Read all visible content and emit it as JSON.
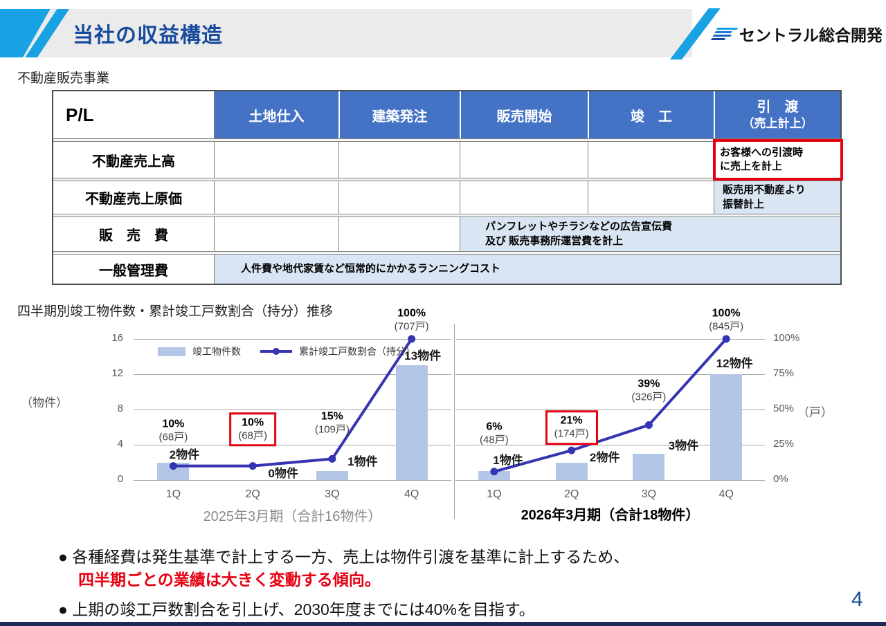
{
  "slide": {
    "header_title": "当社の収益構造",
    "logo_text": "セントラル総合開発",
    "business_label": "不動産販売事業",
    "chart_section_title": "四半期別竣工物件数・累計竣工戸数割合（持分）推移",
    "page_number": "4",
    "colors": {
      "accent_blue": "#164a9c",
      "cyan_stripe": "#18a2e3",
      "table_header_blue": "#4472c4",
      "note_bg_blue": "#d9e5f2",
      "highlight_red": "#e60012",
      "bar_fill": "#b4c6e7",
      "line_color": "#3534b2"
    }
  },
  "pl_table": {
    "corner": "P/L",
    "phase_columns": [
      "土地仕入",
      "建築発注",
      "販売開始",
      "竣　工"
    ],
    "last_phase_line1": "引　渡",
    "last_phase_line2": "（売上計上）",
    "rows": [
      {
        "label": "不動産売上高",
        "note": "お客様への引渡時\nに売上を計上"
      },
      {
        "label": "不動産売上原価",
        "note": "販売用不動産より\n振替計上"
      },
      {
        "label": "販　売　費",
        "note": "パンフレットやチラシなどの広告宣伝費\n及び 販売事務所運営費を計上"
      },
      {
        "label": "一般管理費",
        "note": "人件費や地代家賃など恒常的にかかるランニングコスト"
      }
    ]
  },
  "chart_data": {
    "type": "combo-bar-line",
    "legend": [
      "竣工物件数",
      "累計竣工戸数割合（持分）"
    ],
    "left_axis": {
      "unit": "（物件）",
      "ticks": [
        "16",
        "12",
        "8",
        "4",
        "0"
      ],
      "max": 16
    },
    "right_axis": {
      "unit": "（戸）",
      "ticks": [
        "100%",
        "75%",
        "50%",
        "25%",
        "0%"
      ],
      "max_pct": 100
    },
    "panels": [
      {
        "title": "2025年3月期（合計16物件）",
        "categories": [
          "1Q",
          "2Q",
          "3Q",
          "4Q"
        ],
        "bars_units": [
          2,
          0,
          1,
          13
        ],
        "bar_labels": [
          "2物件",
          "0物件",
          "1物件",
          "13物件"
        ],
        "line_pct": [
          10,
          10,
          15,
          100
        ],
        "pct_labels": [
          "10%",
          "10%",
          "15%",
          "100%"
        ],
        "pct_sublabels": [
          "(68戸)",
          "(68戸)",
          "(109戸)",
          "(707戸)"
        ],
        "highlighted_point": 1
      },
      {
        "title": "2026年3月期（合計18物件）",
        "categories": [
          "1Q",
          "2Q",
          "3Q",
          "4Q"
        ],
        "bars_units": [
          1,
          2,
          3,
          12
        ],
        "bar_labels": [
          "1物件",
          "2物件",
          "3物件",
          "12物件"
        ],
        "line_pct": [
          6,
          21,
          39,
          100
        ],
        "pct_labels": [
          "6%",
          "21%",
          "39%",
          "100%"
        ],
        "pct_sublabels": [
          "(48戸)",
          "(174戸)",
          "(326戸)",
          "(845戸)"
        ],
        "highlighted_point": 1
      }
    ]
  },
  "bullets": {
    "b1_line1": "● 各種経費は発生基準で計上する一方、売上は物件引渡を基準に計上するため、",
    "b1_line2_red": "四半期ごとの業績は大きく変動する傾向。",
    "b2": "● 上期の竣工戸数割合を引上げ、2030年度までには40%を目指す。"
  }
}
